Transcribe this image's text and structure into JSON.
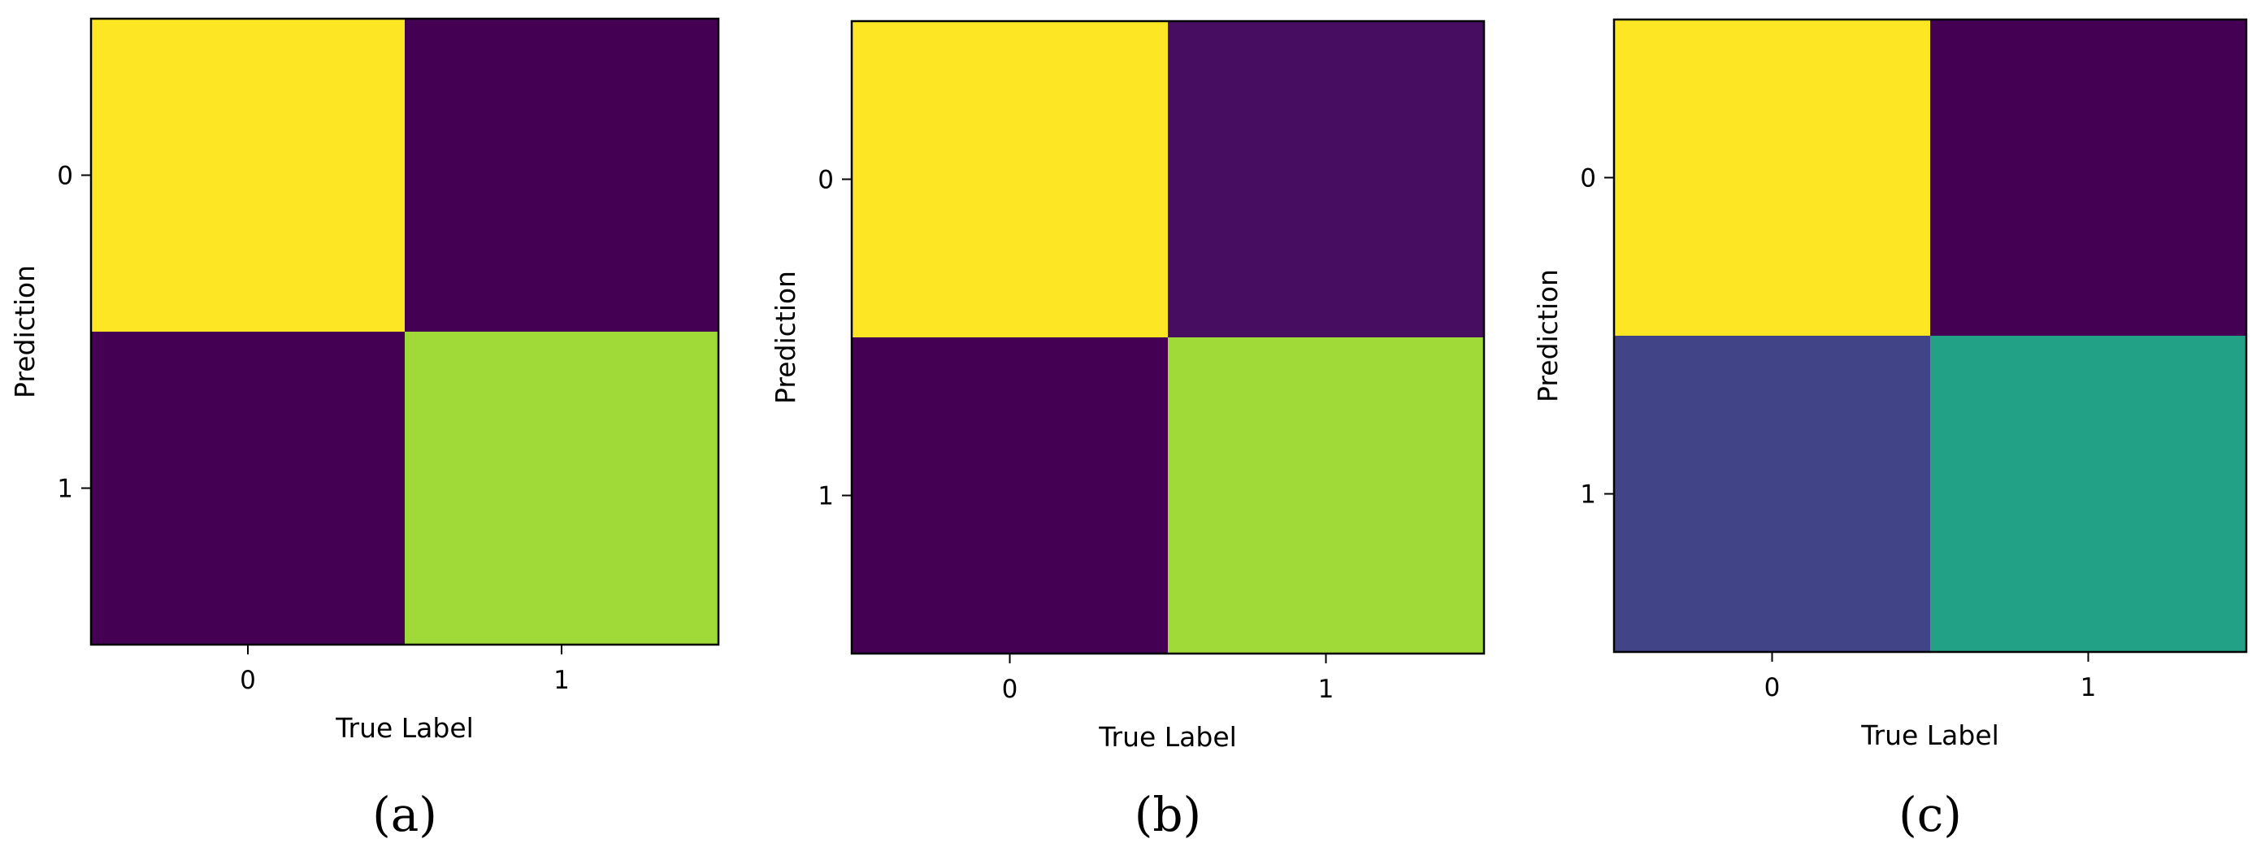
{
  "chart_data": [
    {
      "type": "heatmap",
      "panel": "(a)",
      "xlabel": "True Label",
      "ylabel": "Prediction",
      "x_ticks": [
        "0",
        "1"
      ],
      "y_ticks": [
        "0",
        "1"
      ],
      "cell_colors": [
        [
          "#fde725",
          "#440154"
        ],
        [
          "#440154",
          "#a0da39"
        ]
      ]
    },
    {
      "type": "heatmap",
      "panel": "(b)",
      "xlabel": "True Label",
      "ylabel": "Prediction",
      "x_ticks": [
        "0",
        "1"
      ],
      "y_ticks": [
        "0",
        "1"
      ],
      "cell_colors": [
        [
          "#fde725",
          "#470d60"
        ],
        [
          "#440154",
          "#a0da39"
        ]
      ]
    },
    {
      "type": "heatmap",
      "panel": "(c)",
      "xlabel": "True Label",
      "ylabel": "Prediction",
      "x_ticks": [
        "0",
        "1"
      ],
      "y_ticks": [
        "0",
        "1"
      ],
      "cell_colors": [
        [
          "#fde725",
          "#440154"
        ],
        [
          "#414487",
          "#22a187"
        ]
      ]
    }
  ]
}
